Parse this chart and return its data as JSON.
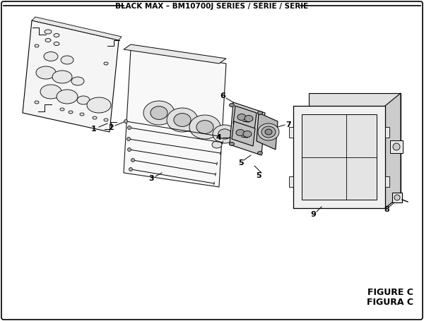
{
  "title": "BLACK MAX – BM10700J SERIES / SÉRIE / SERIE",
  "figure_label": "FIGURE C",
  "figura_label": "FIGURA C",
  "bg_color": "#ffffff",
  "lc": "#000000",
  "tc": "#000000",
  "gray_light": "#e8e8e8",
  "gray_mid": "#cccccc",
  "gray_dark": "#aaaaaa",
  "gray_fill": "#f5f5f5"
}
